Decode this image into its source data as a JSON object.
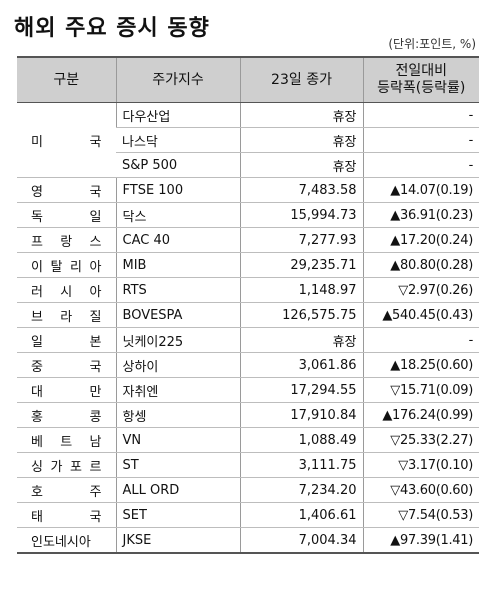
{
  "title": "해외 주요 증시 동향",
  "unit": "(단위:포인트, %)",
  "headers": {
    "region": "구분",
    "index": "주가지수",
    "close": "23일 종가",
    "change_line1": "전일대비",
    "change_line2": "등락폭(등락률)"
  },
  "usa_region": "미 국",
  "rows": [
    {
      "region": "",
      "index": "다우산업",
      "close": "휴장",
      "change": "-"
    },
    {
      "region": "",
      "index": "나스닥",
      "close": "휴장",
      "change": "-"
    },
    {
      "region": "",
      "index": "S&P 500",
      "close": "휴장",
      "change": "-"
    },
    {
      "region": "영 국",
      "index": "FTSE 100",
      "close": "7,483.58",
      "change": "▲14.07(0.19)"
    },
    {
      "region": "독 일",
      "index": "닥스",
      "close": "15,994.73",
      "change": "▲36.91(0.23)"
    },
    {
      "region": "프 랑 스",
      "index": "CAC 40",
      "close": "7,277.93",
      "change": "▲17.20(0.24)"
    },
    {
      "region": "이 탈 리 아",
      "index": "MIB",
      "close": "29,235.71",
      "change": "▲80.80(0.28)"
    },
    {
      "region": "러 시 아",
      "index": "RTS",
      "close": "1,148.97",
      "change": "▽2.97(0.26)"
    },
    {
      "region": "브 라 질",
      "index": "BOVESPA",
      "close": "126,575.75",
      "change": "▲540.45(0.43)"
    },
    {
      "region": "일 본",
      "index": "닛케이225",
      "close": "휴장",
      "change": "-"
    },
    {
      "region": "중 국",
      "index": "상하이",
      "close": "3,061.86",
      "change": "▲18.25(0.60)"
    },
    {
      "region": "대 만",
      "index": "자취엔",
      "close": "17,294.55",
      "change": "▽15.71(0.09)"
    },
    {
      "region": "홍 콩",
      "index": "항셍",
      "close": "17,910.84",
      "change": "▲176.24(0.99)"
    },
    {
      "region": "베 트 남",
      "index": "VN",
      "close": "1,088.49",
      "change": "▽25.33(2.27)"
    },
    {
      "region": "싱 가 포 르",
      "index": "ST",
      "close": "3,111.75",
      "change": "▽3.17(0.10)"
    },
    {
      "region": "호 주",
      "index": "ALL ORD",
      "close": "7,234.20",
      "change": "▽43.60(0.60)"
    },
    {
      "region": "태 국",
      "index": "SET",
      "close": "1,406.61",
      "change": "▽7.54(0.53)"
    },
    {
      "region": "인도네시아",
      "index": "JKSE",
      "close": "7,004.34",
      "change": "▲97.39(1.41)"
    }
  ]
}
